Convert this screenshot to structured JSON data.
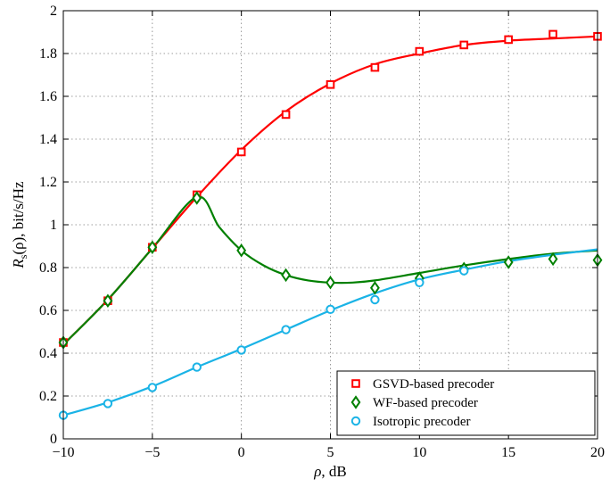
{
  "chart_data": {
    "type": "line",
    "xlabel": "ρ, dB",
    "ylabel": "R_s(ρ), bit/s/Hz",
    "xlim": [
      -10,
      20
    ],
    "ylim": [
      0,
      2
    ],
    "xticks": [
      -10,
      -5,
      0,
      5,
      10,
      15,
      20
    ],
    "xtick_labels": [
      "−10",
      "−5",
      "0",
      "5",
      "10",
      "15",
      "20"
    ],
    "yticks": [
      0,
      0.2,
      0.4,
      0.6,
      0.8,
      1,
      1.2,
      1.4,
      1.6,
      1.8,
      2
    ],
    "ytick_labels": [
      "0",
      "0.2",
      "0.4",
      "0.6",
      "0.8",
      "1",
      "1.2",
      "1.4",
      "1.6",
      "1.8",
      "2"
    ],
    "grid": true,
    "legend_position": "bottom-right",
    "series": [
      {
        "name": "GSVD-based precoder",
        "color": "#ff0000",
        "marker": "square",
        "curve_x": [
          -10,
          -7.5,
          -5,
          -2.5,
          0,
          2.5,
          5,
          7.5,
          10,
          12.5,
          15,
          17.5,
          20
        ],
        "curve_y": [
          0.44,
          0.65,
          0.89,
          1.13,
          1.35,
          1.53,
          1.66,
          1.75,
          1.8,
          1.84,
          1.86,
          1.87,
          1.88
        ],
        "points_x": [
          -10,
          -7.5,
          -5,
          -2.5,
          0,
          2.5,
          5,
          7.5,
          10,
          12.5,
          15,
          17.5,
          20
        ],
        "points_y": [
          0.45,
          0.645,
          0.895,
          1.14,
          1.34,
          1.515,
          1.655,
          1.735,
          1.81,
          1.84,
          1.865,
          1.89,
          1.88
        ]
      },
      {
        "name": "WF-based precoder",
        "color": "#008000",
        "marker": "diamond",
        "curve_x": [
          -10,
          -7.5,
          -5,
          -2.5,
          -1.25,
          0,
          1.25,
          2.5,
          3.75,
          5,
          6.25,
          7.5,
          10,
          12.5,
          15,
          17.5,
          20
        ],
        "curve_y": [
          0.44,
          0.65,
          0.89,
          1.13,
          0.99,
          0.88,
          0.81,
          0.765,
          0.74,
          0.73,
          0.73,
          0.74,
          0.775,
          0.81,
          0.84,
          0.865,
          0.88
        ],
        "points_x": [
          -10,
          -7.5,
          -5,
          -2.5,
          0,
          2.5,
          5,
          7.5,
          10,
          12.5,
          15,
          17.5,
          20
        ],
        "points_y": [
          0.45,
          0.645,
          0.895,
          1.125,
          0.88,
          0.765,
          0.73,
          0.705,
          0.75,
          0.795,
          0.825,
          0.84,
          0.835
        ]
      },
      {
        "name": "Isotropic precoder",
        "color": "#1ab3e6",
        "marker": "circle",
        "curve_x": [
          -10,
          -7.5,
          -5,
          -2.5,
          0,
          2.5,
          5,
          7.5,
          10,
          12.5,
          15,
          17.5,
          20
        ],
        "curve_y": [
          0.11,
          0.17,
          0.245,
          0.335,
          0.42,
          0.51,
          0.6,
          0.68,
          0.745,
          0.79,
          0.83,
          0.86,
          0.885
        ],
        "points_x": [
          -10,
          -7.5,
          -5,
          -2.5,
          0,
          2.5,
          5,
          7.5,
          10,
          12.5,
          15,
          17.5,
          20
        ],
        "points_y": [
          0.11,
          0.165,
          0.24,
          0.335,
          0.415,
          0.51,
          0.605,
          0.65,
          0.73,
          0.785,
          null,
          null,
          null
        ]
      }
    ]
  }
}
